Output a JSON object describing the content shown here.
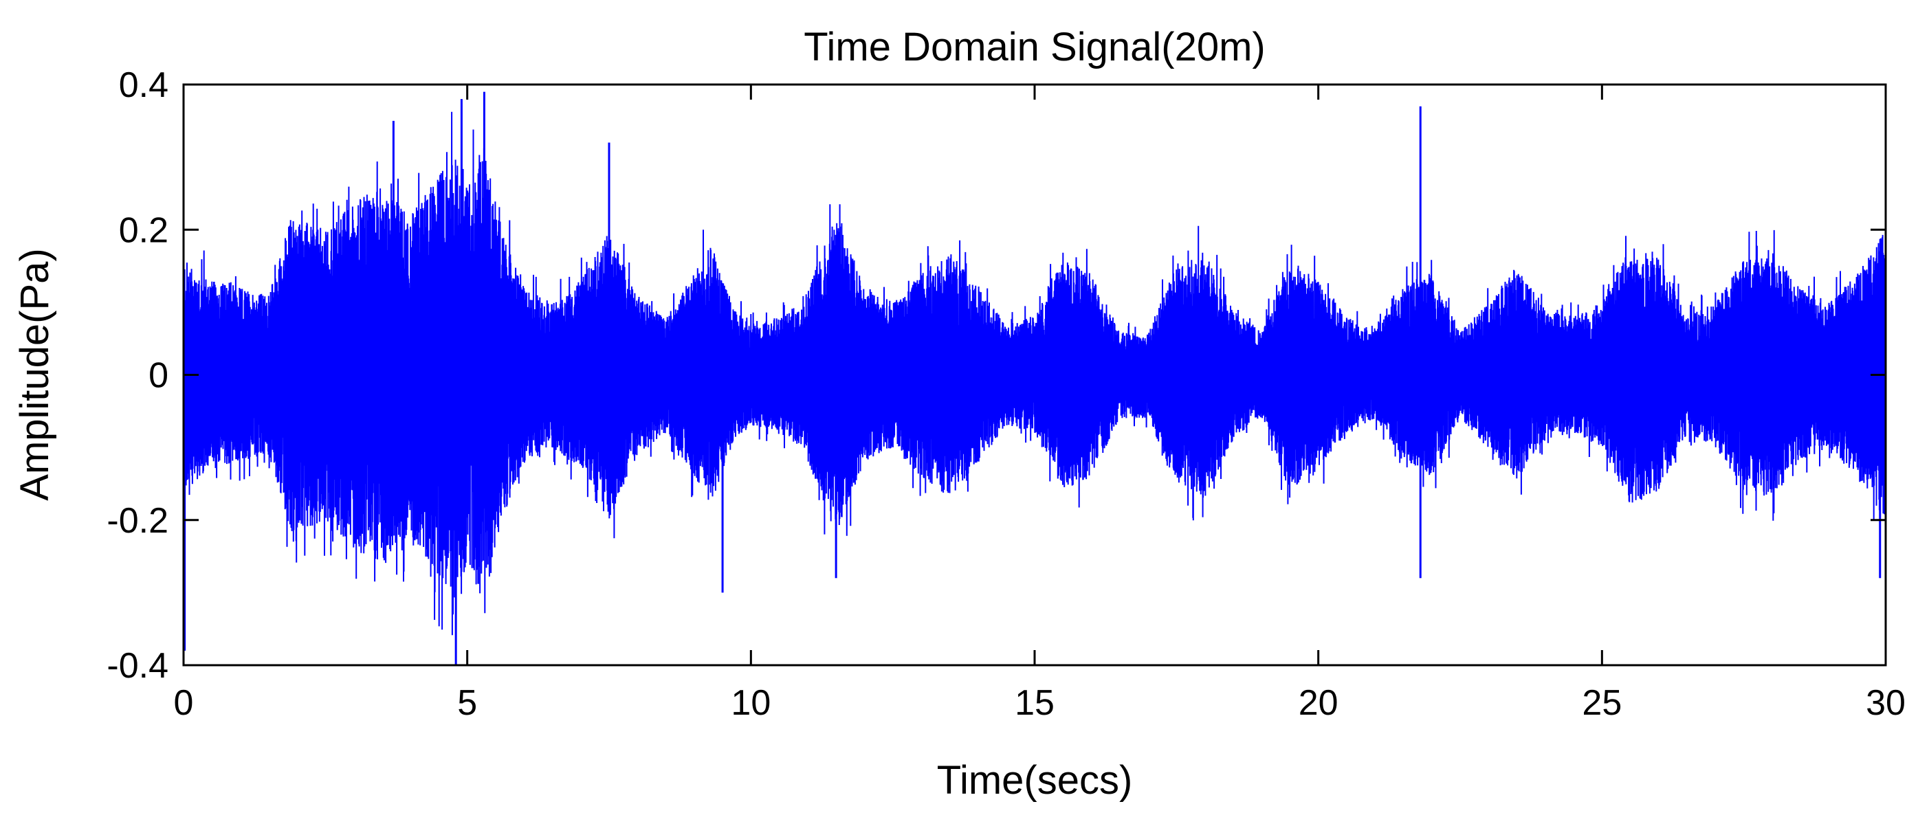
{
  "chart_data": {
    "type": "line",
    "title": "Time Domain Signal(20m)",
    "xlabel": "Time(secs)",
    "ylabel": "Amplitude(Pa)",
    "xlim": [
      0,
      30
    ],
    "ylim": [
      -0.4,
      0.4
    ],
    "xticks": [
      0,
      5,
      10,
      15,
      20,
      25,
      30
    ],
    "xtick_labels": [
      "0",
      "5",
      "10",
      "15",
      "20",
      "25",
      "30"
    ],
    "yticks": [
      -0.4,
      -0.2,
      0,
      0.2,
      0.4
    ],
    "ytick_labels": [
      "-0.4",
      "-0.2",
      "0",
      "0.2",
      "0.4"
    ],
    "grid": false,
    "legend": "none",
    "colors": {
      "line": "#0000ff",
      "axes": "#000000",
      "background": "#ffffff"
    },
    "series": [
      {
        "envelope": {
          "x": [
            0,
            0.5,
            1.0,
            1.5,
            1.9,
            2.5,
            3.0,
            3.5,
            4.0,
            4.5,
            4.8,
            5.0,
            5.3,
            5.6,
            6.0,
            6.5,
            7.0,
            7.5,
            8.0,
            8.5,
            9.0,
            9.3,
            9.7,
            10.0,
            10.5,
            10.9,
            11.5,
            12.0,
            12.5,
            13.0,
            13.5,
            14.0,
            14.5,
            15.0,
            15.5,
            16.0,
            16.5,
            17.0,
            17.5,
            18.0,
            18.5,
            19.0,
            19.5,
            20.0,
            20.5,
            21.0,
            21.5,
            22.0,
            22.5,
            23.0,
            23.5,
            24.0,
            24.5,
            25.0,
            25.5,
            26.0,
            26.5,
            27.0,
            27.5,
            28.0,
            28.5,
            29.0,
            29.5,
            30.0
          ],
          "y": [
            0.16,
            0.13,
            0.12,
            0.11,
            0.22,
            0.2,
            0.24,
            0.26,
            0.22,
            0.28,
            0.3,
            0.26,
            0.32,
            0.2,
            0.12,
            0.1,
            0.13,
            0.2,
            0.11,
            0.08,
            0.14,
            0.18,
            0.09,
            0.07,
            0.08,
            0.1,
            0.22,
            0.12,
            0.1,
            0.14,
            0.17,
            0.12,
            0.07,
            0.08,
            0.16,
            0.14,
            0.06,
            0.06,
            0.15,
            0.17,
            0.09,
            0.06,
            0.16,
            0.13,
            0.08,
            0.06,
            0.12,
            0.14,
            0.06,
            0.1,
            0.15,
            0.09,
            0.08,
            0.1,
            0.18,
            0.16,
            0.08,
            0.1,
            0.16,
            0.17,
            0.12,
            0.1,
            0.14,
            0.2
          ]
        },
        "peaks": [
          {
            "x": 0.02,
            "y": -0.38
          },
          {
            "x": 4.8,
            "y": -0.4
          },
          {
            "x": 5.3,
            "y": 0.39
          },
          {
            "x": 4.9,
            "y": 0.38
          },
          {
            "x": 3.7,
            "y": 0.35
          },
          {
            "x": 7.5,
            "y": 0.32
          },
          {
            "x": 9.5,
            "y": -0.3
          },
          {
            "x": 11.5,
            "y": -0.28
          },
          {
            "x": 21.8,
            "y": 0.37
          },
          {
            "x": 21.8,
            "y": -0.28
          },
          {
            "x": 29.9,
            "y": -0.28
          }
        ]
      }
    ]
  }
}
